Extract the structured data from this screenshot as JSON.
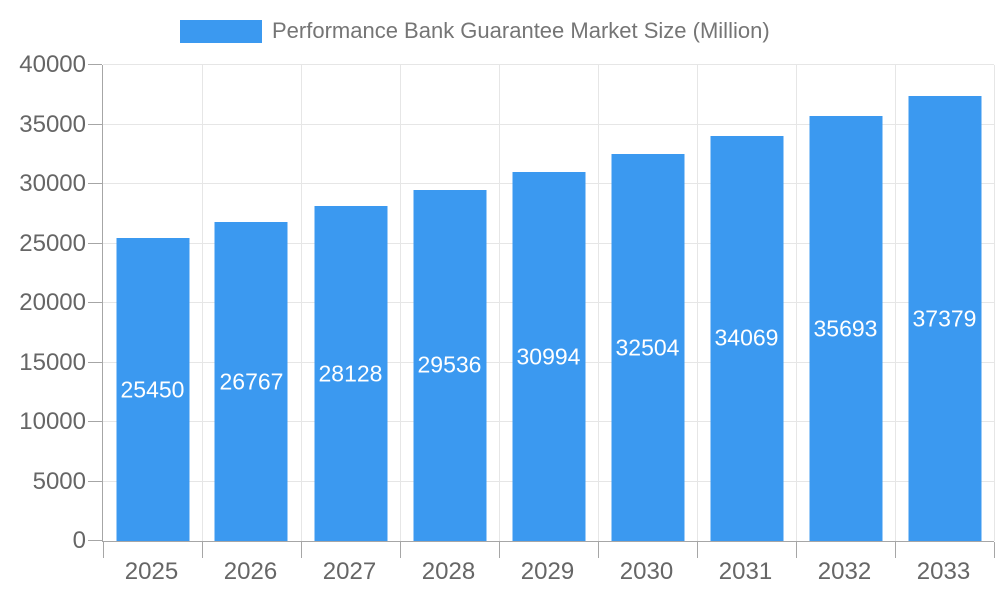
{
  "legend": {
    "label": "Performance Bank Guarantee Market Size (Million)"
  },
  "colors": {
    "bar": "#3B99F0",
    "grid": "#E6E6E6",
    "axis": "#A6A6A6",
    "axis_text": "#666666",
    "legend_text": "#757575",
    "bar_label_text": "#FFFFFF",
    "background": "#FFFFFF"
  },
  "chart_data": {
    "type": "bar",
    "title": "Performance Bank Guarantee Market Size (Million)",
    "categories": [
      "2025",
      "2026",
      "2027",
      "2028",
      "2029",
      "2030",
      "2031",
      "2032",
      "2033"
    ],
    "values": [
      25450,
      26767,
      28128,
      29536,
      30994,
      32504,
      34069,
      35693,
      37379
    ],
    "yticks": [
      "0",
      "5000",
      "10000",
      "15000",
      "20000",
      "25000",
      "30000",
      "35000",
      "40000"
    ],
    "ylim": [
      0,
      40000
    ],
    "xlabel": "",
    "ylabel": "",
    "grid": true,
    "legend_position": "top",
    "value_labels": "inside-middle"
  }
}
